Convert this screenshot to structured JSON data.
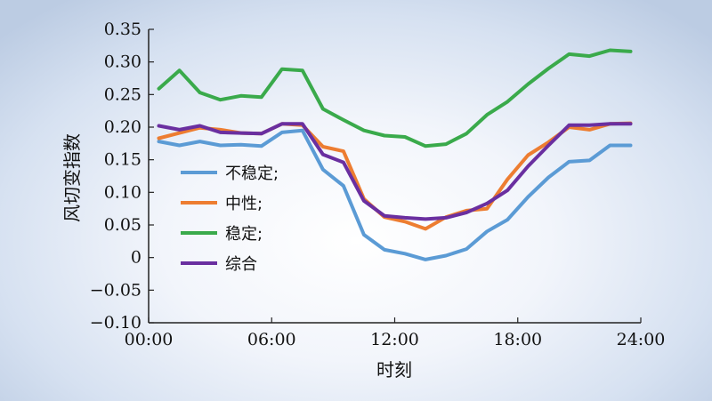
{
  "chart_data": {
    "type": "line",
    "xlabel": "时刻",
    "ylabel": "风切变指数",
    "xlim": [
      0,
      24
    ],
    "ylim": [
      -0.1,
      0.35
    ],
    "xticks": [
      0,
      6,
      12,
      18,
      24
    ],
    "xtick_labels": [
      "00:00",
      "06:00",
      "12:00",
      "18:00",
      "24:00"
    ],
    "yticks": [
      -0.1,
      -0.05,
      0,
      0.05,
      0.1,
      0.15,
      0.2,
      0.25,
      0.3,
      0.35
    ],
    "ytick_labels": [
      "−0.10",
      "−0.05",
      "0",
      "0.05",
      "0.10",
      "0.15",
      "0.20",
      "0.25",
      "0.30",
      "0.35"
    ],
    "grid": false,
    "legend_position": "left",
    "x": [
      0.5,
      1.5,
      2.5,
      3.5,
      4.5,
      5.5,
      6.5,
      7.5,
      8.5,
      9.5,
      10.5,
      11.5,
      12.5,
      13.5,
      14.5,
      15.5,
      16.5,
      17.5,
      18.5,
      19.5,
      20.5,
      21.5,
      22.5,
      23.5
    ],
    "series": [
      {
        "name": "不稳定;",
        "color": "#5b9bd5",
        "values": [
          0.178,
          0.172,
          0.178,
          0.172,
          0.173,
          0.171,
          0.192,
          0.195,
          0.135,
          0.11,
          0.035,
          0.012,
          0.006,
          -0.003,
          0.003,
          0.013,
          0.04,
          0.058,
          0.093,
          0.123,
          0.147,
          0.149,
          0.172,
          0.172
        ]
      },
      {
        "name": "中性;",
        "color": "#ed7d31",
        "values": [
          0.183,
          0.191,
          0.199,
          0.196,
          0.191,
          0.19,
          0.205,
          0.203,
          0.17,
          0.163,
          0.09,
          0.062,
          0.055,
          0.044,
          0.062,
          0.072,
          0.075,
          0.12,
          0.157,
          0.177,
          0.2,
          0.196,
          0.205,
          0.206
        ]
      },
      {
        "name": "稳定;",
        "color": "#3aaa4b",
        "values": [
          0.259,
          0.287,
          0.253,
          0.242,
          0.248,
          0.246,
          0.289,
          0.287,
          0.228,
          0.211,
          0.195,
          0.187,
          0.185,
          0.171,
          0.174,
          0.19,
          0.219,
          0.239,
          0.266,
          0.29,
          0.312,
          0.309,
          0.318,
          0.316
        ]
      },
      {
        "name": "综合",
        "color": "#6a2fa0",
        "values": [
          0.202,
          0.196,
          0.202,
          0.192,
          0.191,
          0.19,
          0.205,
          0.205,
          0.158,
          0.146,
          0.087,
          0.064,
          0.061,
          0.059,
          0.061,
          0.069,
          0.083,
          0.103,
          0.14,
          0.172,
          0.203,
          0.203,
          0.205,
          0.205
        ]
      }
    ]
  }
}
